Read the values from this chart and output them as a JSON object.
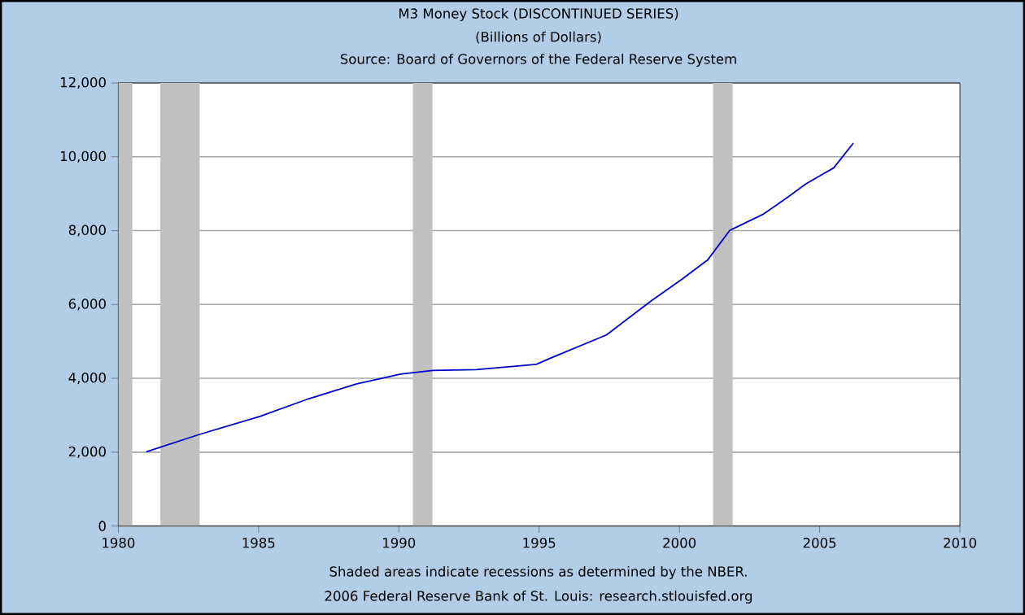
{
  "chart_data": {
    "type": "line",
    "title": "M3 Money Stock (DISCONTINUED SERIES)",
    "subtitle": "(Billions of Dollars)",
    "annotations": [
      "Source: Board of Governors of the Federal Reserve System",
      "Shaded areas indicate recessions as determined by the NBER.",
      "2006 Federal Reserve Bank of St. Louis: research.stlouisfed.org"
    ],
    "series": [
      {
        "color": "#0000cc",
        "x": [
          1981.0,
          1982.85,
          1985.05,
          1986.8,
          1988.5,
          1990.06,
          1991.2,
          1992.75,
          1994.9,
          1995.45,
          1997.4,
          1999.0,
          2000.1,
          2001.0,
          2001.8,
          2003.0,
          2003.9,
          2004.5,
          2005.5,
          2006.2
        ],
        "values": [
          2010,
          2470,
          2970,
          3450,
          3850,
          4115,
          4215,
          4235,
          4380,
          4560,
          5175,
          6100,
          6690,
          7200,
          8010,
          8450,
          8925,
          9260,
          9700,
          10370
        ]
      }
    ],
    "xlim": [
      1980,
      2010
    ],
    "xticks": [
      1980,
      1985,
      1990,
      1995,
      2000,
      2005,
      2010
    ],
    "ylim": [
      0,
      12000
    ],
    "yticks": [
      0,
      {
        "value": 2000,
        "label": "2,000"
      },
      {
        "value": 4000,
        "label": "4,000"
      },
      {
        "value": 6000,
        "label": "6,000"
      },
      {
        "value": 8000,
        "label": "8,000"
      },
      {
        "value": 10000,
        "label": "10,000"
      },
      {
        "value": 12000,
        "label": "12,000"
      }
    ],
    "grid": "y",
    "bands": [
      {
        "axis": "x",
        "from": 1980.0,
        "to": 1980.5,
        "color": "#c0c0c0"
      },
      {
        "axis": "x",
        "from": 1981.5,
        "to": 1982.9,
        "color": "#c0c0c0"
      },
      {
        "axis": "x",
        "from": 1990.5,
        "to": 1991.2,
        "color": "#c0c0c0"
      },
      {
        "axis": "x",
        "from": 2001.2,
        "to": 2001.9,
        "color": "#c0c0c0"
      }
    ]
  }
}
